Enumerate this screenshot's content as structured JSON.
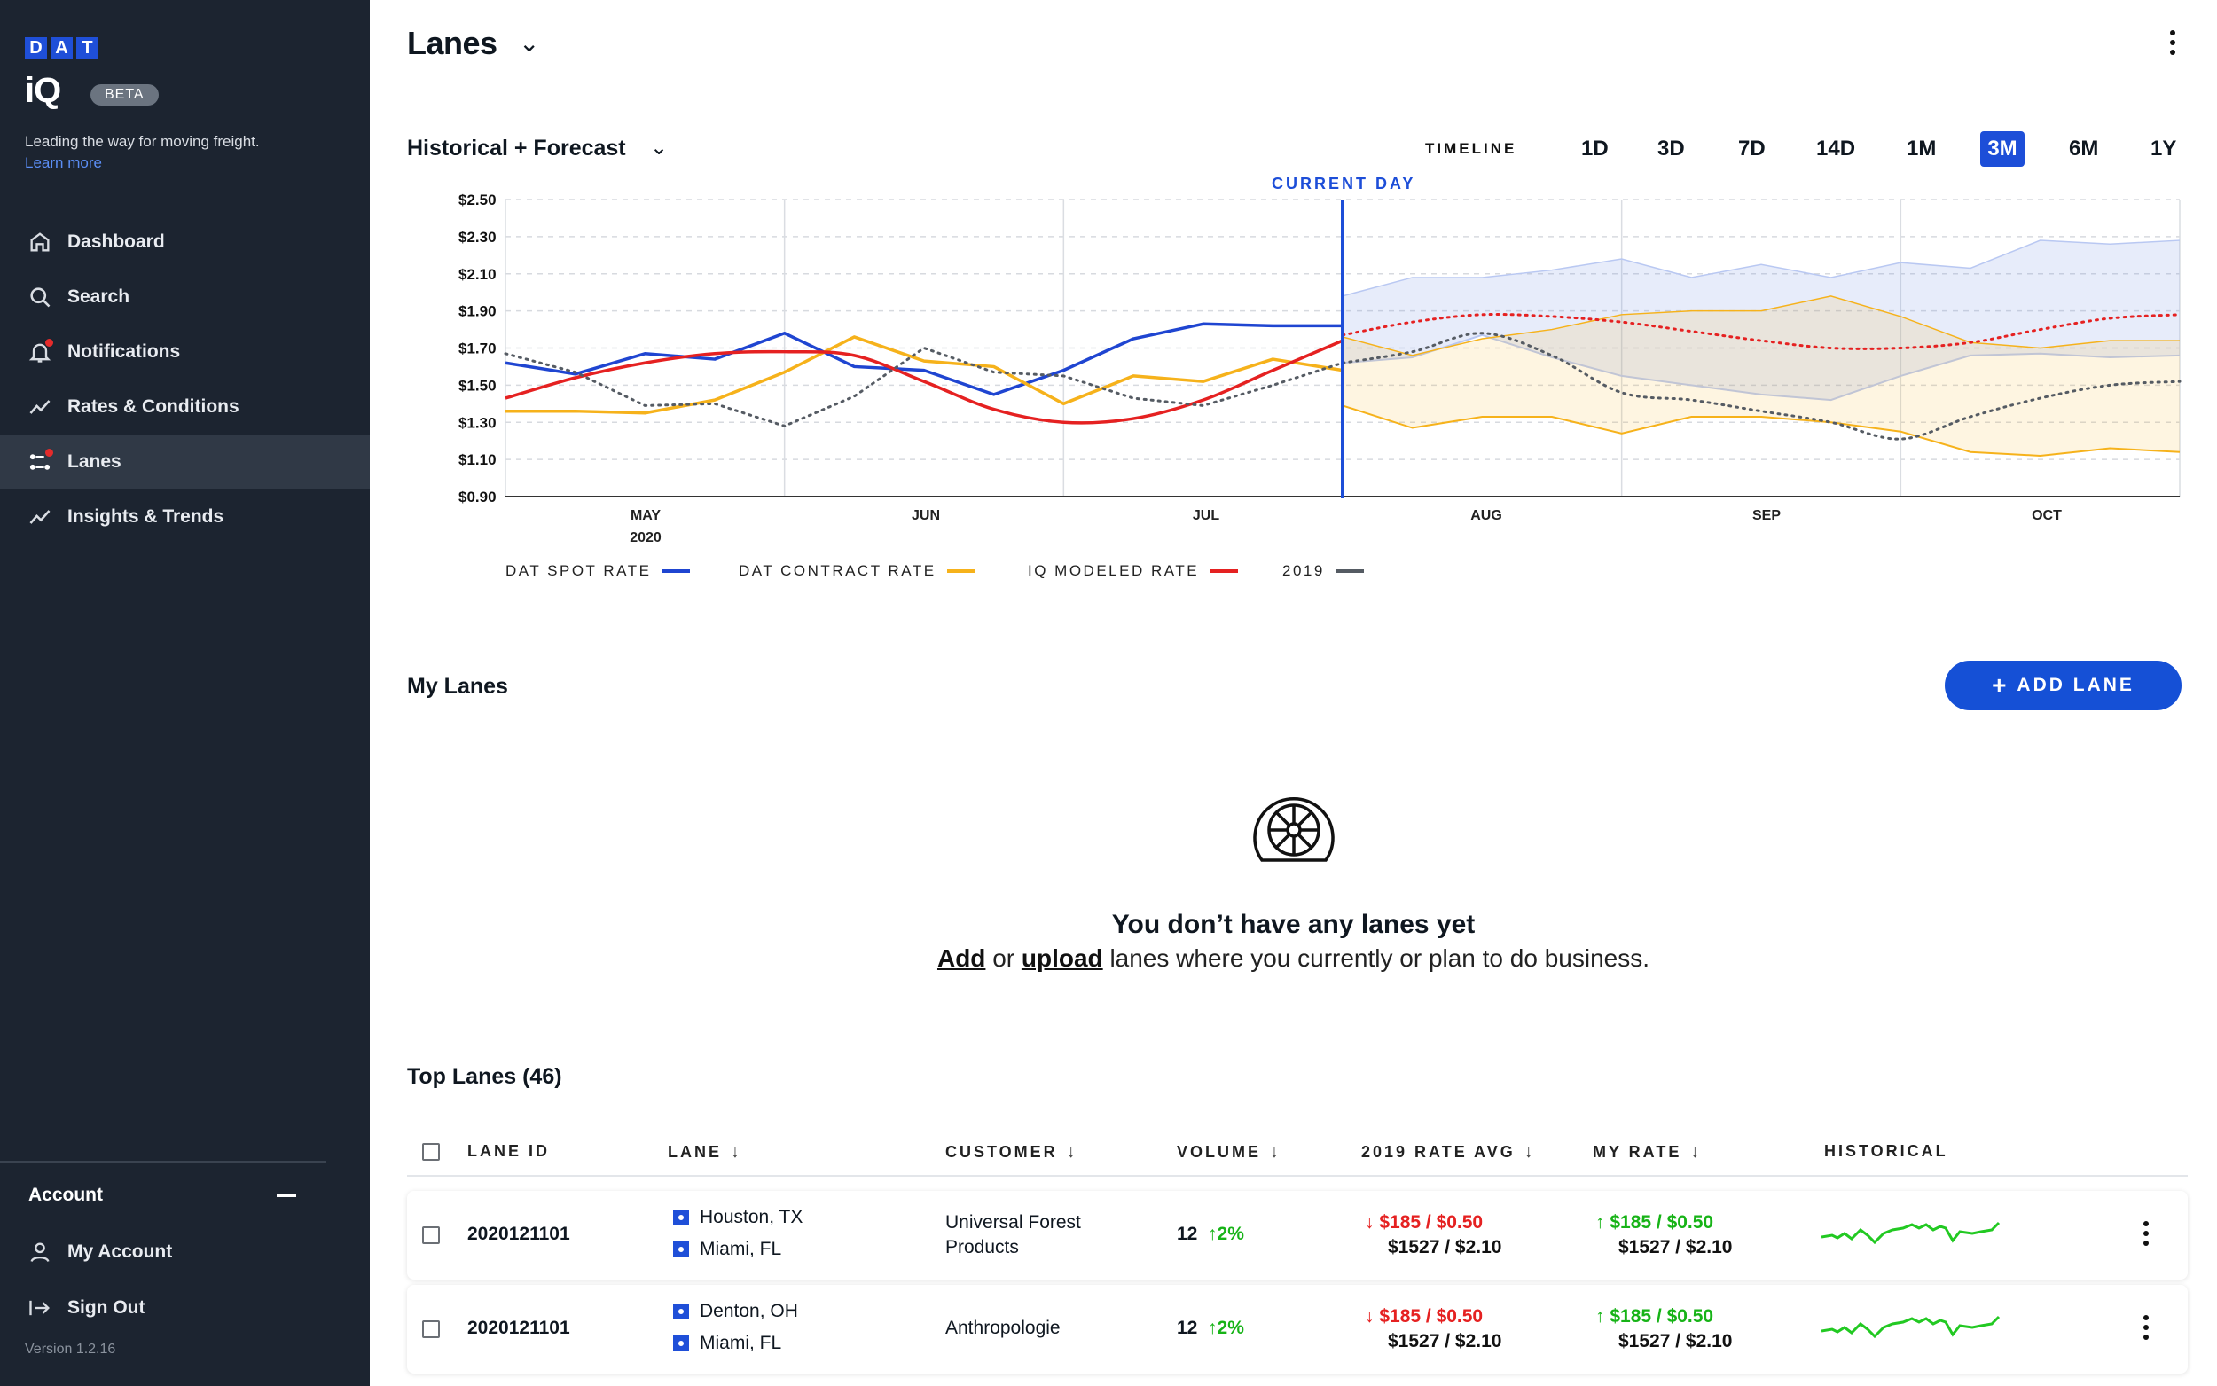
{
  "brand": {
    "logo_letters": [
      "D",
      "A",
      "T"
    ],
    "product": "iQ",
    "badge": "BETA",
    "tagline": "Leading the way for moving freight.",
    "learn_more": "Learn more"
  },
  "nav": [
    {
      "label": "Dashboard",
      "icon": "home-icon"
    },
    {
      "label": "Search",
      "icon": "search-icon"
    },
    {
      "label": "Notifications",
      "icon": "bell-icon"
    },
    {
      "label": "Rates & Conditions",
      "icon": "trend-icon"
    },
    {
      "label": "Lanes",
      "icon": "lanes-icon"
    },
    {
      "label": "Insights & Trends",
      "icon": "trend-icon"
    }
  ],
  "account": {
    "heading": "Account",
    "my_account": "My Account",
    "sign_out": "Sign Out",
    "version": "Version 1.2.16"
  },
  "header": {
    "title": "Lanes"
  },
  "chart_header": {
    "title": "Historical + Forecast",
    "timeline_label": "TIMELINE",
    "ranges": [
      "1D",
      "3D",
      "7D",
      "14D",
      "1M",
      "3M",
      "6M",
      "1Y"
    ],
    "active_range": "3M"
  },
  "chart_data": {
    "type": "line",
    "annotation": "CURRENT DAY",
    "y_ticks": [
      "$2.50",
      "$2.30",
      "$2.10",
      "$1.90",
      "$1.70",
      "$1.50",
      "$1.30",
      "$1.10",
      "$0.90"
    ],
    "ylim": [
      0.9,
      2.5
    ],
    "x_ticks": [
      {
        "label": "MAY",
        "sub": "2020"
      },
      {
        "label": "JUN",
        "sub": ""
      },
      {
        "label": "JUL",
        "sub": ""
      },
      {
        "label": "AUG",
        "sub": ""
      },
      {
        "label": "SEP",
        "sub": ""
      },
      {
        "label": "OCT",
        "sub": ""
      }
    ],
    "current_day_t": 3.0,
    "series": [
      {
        "name": "DAT SPOT RATE",
        "color": "#1f45d1",
        "t": [
          0,
          0.25,
          0.5,
          0.75,
          1,
          1.25,
          1.5,
          1.75,
          2,
          2.25,
          2.5,
          2.75,
          3
        ],
        "values": [
          1.62,
          1.56,
          1.67,
          1.64,
          1.78,
          1.6,
          1.58,
          1.45,
          1.58,
          1.75,
          1.83,
          1.82,
          1.82
        ]
      },
      {
        "name": "DAT CONTRACT RATE",
        "color": "#f6b21b",
        "t": [
          0,
          0.25,
          0.5,
          0.75,
          1,
          1.25,
          1.5,
          1.75,
          2,
          2.25,
          2.5,
          2.75,
          3
        ],
        "values": [
          1.36,
          1.36,
          1.35,
          1.42,
          1.57,
          1.76,
          1.63,
          1.6,
          1.4,
          1.55,
          1.52,
          1.64,
          1.58
        ]
      },
      {
        "name": "IQ MODELED RATE",
        "color": "#e52121",
        "t": [
          0,
          0.25,
          0.5,
          0.75,
          1,
          1.25,
          1.5,
          1.75,
          2,
          2.25,
          2.5,
          2.75,
          3
        ],
        "values": [
          1.43,
          1.54,
          1.62,
          1.67,
          1.68,
          1.66,
          1.52,
          1.37,
          1.3,
          1.32,
          1.42,
          1.58,
          1.74
        ]
      },
      {
        "name": "2019",
        "color": "#555b63",
        "t": [
          0,
          0.25,
          0.5,
          0.75,
          1,
          1.25,
          1.5,
          1.75,
          2,
          2.25,
          2.5,
          2.75,
          3
        ],
        "values": [
          1.67,
          1.57,
          1.39,
          1.4,
          1.28,
          1.44,
          1.7,
          1.57,
          1.55,
          1.43,
          1.39,
          1.5,
          1.62
        ]
      }
    ],
    "forecast": {
      "t": [
        3,
        3.25,
        3.5,
        3.75,
        4,
        4.25,
        4.5,
        4.75,
        5,
        5.25,
        5.5,
        5.75,
        6
      ],
      "iq_modeled": [
        1.77,
        1.84,
        1.88,
        1.87,
        1.84,
        1.79,
        1.74,
        1.7,
        1.7,
        1.73,
        1.8,
        1.86,
        1.88
      ],
      "year_2019": [
        1.62,
        1.68,
        1.78,
        1.66,
        1.46,
        1.42,
        1.36,
        1.3,
        1.21,
        1.33,
        1.43,
        1.5,
        1.52
      ],
      "spot_band_upper": [
        1.98,
        2.08,
        2.08,
        2.12,
        2.18,
        2.08,
        2.15,
        2.08,
        2.16,
        2.13,
        2.28,
        2.26,
        2.28
      ],
      "spot_band_lower": [
        1.62,
        1.65,
        1.77,
        1.65,
        1.55,
        1.5,
        1.45,
        1.42,
        1.55,
        1.66,
        1.67,
        1.65,
        1.66
      ],
      "contract_upper": [
        1.76,
        1.66,
        1.75,
        1.8,
        1.88,
        1.9,
        1.9,
        1.98,
        1.87,
        1.73,
        1.7,
        1.74,
        1.74
      ],
      "contract_lower": [
        1.39,
        1.27,
        1.33,
        1.33,
        1.24,
        1.33,
        1.33,
        1.3,
        1.25,
        1.14,
        1.12,
        1.16,
        1.14
      ]
    },
    "legend_position": "bottom-left",
    "grid": true
  },
  "my_lanes": {
    "title": "My Lanes",
    "add_label": "ADD LANE",
    "empty_title": "You don’t have any lanes yet",
    "empty_add": "Add",
    "empty_or": "or",
    "empty_upload": "upload",
    "empty_rest": "lanes where you currently or plan to do business."
  },
  "top_lanes": {
    "title": "Top  Lanes (46)",
    "columns": [
      "LANE ID",
      "LANE",
      "CUSTOMER",
      "VOLUME",
      "2019 RATE AVG",
      "MY RATE",
      "HISTORICAL"
    ],
    "rows": [
      {
        "lane_id": "2020121101",
        "origin": "Houston, TX",
        "dest": "Miami, FL",
        "customer": "Universal Forest Products",
        "volume": "12",
        "volume_change": "2%",
        "rate2019_top": "$185 / $0.50",
        "rate2019_bottom": "$1527 / $2.10",
        "myrate_top": "$185 / $0.50",
        "myrate_bottom": "$1527 / $2.10"
      },
      {
        "lane_id": "2020121101",
        "origin": "Denton, OH",
        "dest": "Miami, FL",
        "customer": "Anthropologie",
        "volume": "12",
        "volume_change": "2%",
        "rate2019_top": "$185 / $0.50",
        "rate2019_bottom": "$1527 / $2.10",
        "myrate_top": "$185 / $0.50",
        "myrate_bottom": "$1527 / $2.10"
      }
    ]
  },
  "colors": {
    "sidebar": "#1c2430",
    "accent": "#1d4ed8",
    "up": "#17b317",
    "down": "#e52121"
  }
}
